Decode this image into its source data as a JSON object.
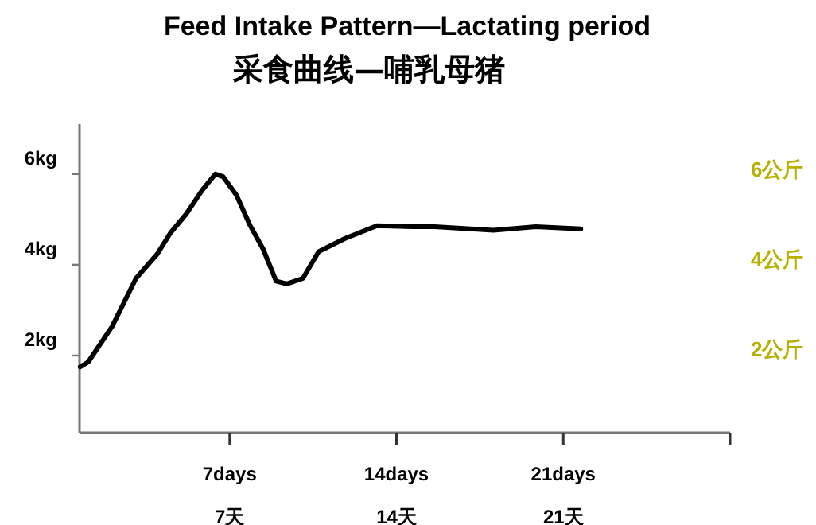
{
  "chart_data": {
    "type": "line",
    "title": "Feed Intake Pattern—Lactating period",
    "subtitle": "采食曲线—哺乳母猪",
    "x": [
      0.73,
      1.07,
      2.07,
      3.07,
      3.95,
      4.51,
      5.18,
      5.85,
      6.4,
      6.73,
      7.29,
      7.84,
      8.4,
      8.95,
      9.4,
      10.07,
      10.73,
      11.85,
      13.18,
      14.73,
      15.6,
      18.07,
      19.85,
      21.73
    ],
    "series": [
      {
        "color": "#000000",
        "values": [
          1.75,
          1.86,
          2.64,
          3.7,
          4.23,
          4.7,
          5.12,
          5.65,
          6.0,
          5.94,
          5.53,
          4.88,
          4.35,
          3.64,
          3.58,
          3.7,
          4.29,
          4.58,
          4.86,
          4.84,
          4.84,
          4.76,
          4.84,
          4.79
        ]
      }
    ],
    "xlim": [
      0.7,
      28
    ],
    "xticks": [
      {
        "value": 7,
        "label": "7days"
      },
      {
        "value": 14,
        "label": "14days"
      },
      {
        "value": 21,
        "label": "21days"
      },
      {
        "value": 28,
        "label": null
      }
    ],
    "annotations": [
      "7天",
      "14天",
      "21天"
    ],
    "ylim": [
      0.3,
      7.1
    ],
    "yticks": [
      {
        "value": 2,
        "label": "2kg"
      },
      {
        "value": 4,
        "label": "4kg"
      },
      {
        "value": 6,
        "label": "6kg"
      }
    ],
    "y2lim": [
      2,
      6
    ],
    "y2ticks": [
      {
        "value": 2,
        "label": "2公斤"
      },
      {
        "value": 4,
        "label": "4公斤"
      },
      {
        "value": 6,
        "label": "6公斤"
      }
    ],
    "grid": false,
    "marker": "none",
    "line_style": "solid"
  }
}
